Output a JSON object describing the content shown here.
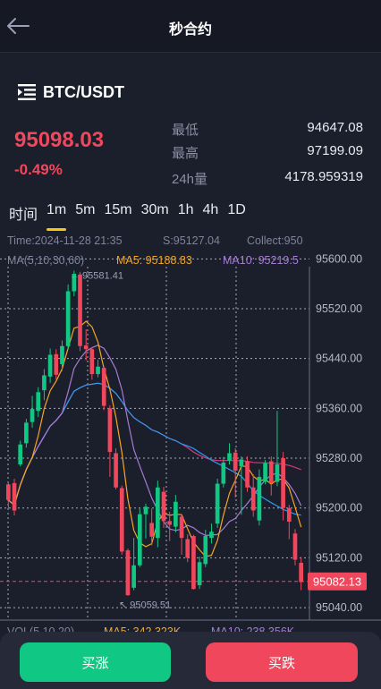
{
  "header": {
    "title": "秒合约"
  },
  "market": {
    "pair": "BTC/USDT",
    "price": "95098.03",
    "change": "-0.49%",
    "stats": [
      {
        "label": "最低",
        "value": "94647.08"
      },
      {
        "label": "最高",
        "value": "97199.09"
      },
      {
        "label": "24h量",
        "value": "4178.959319"
      }
    ]
  },
  "timeframes": {
    "label": "时间",
    "items": [
      "1m",
      "5m",
      "15m",
      "30m",
      "1h",
      "4h",
      "1D"
    ],
    "active": "1m"
  },
  "chart_info": {
    "time": "Time:2024-11-28 21:35",
    "start": "S:95127.04",
    "collect": "Collect:950",
    "ma_label": "MA(5,10,30,60)",
    "ma5": "MA5: 95188.83",
    "ma10": "MA10: 95219.5",
    "vol_label": "VOL(5,10,20)",
    "vol_ma5": "MA5: 342.323K",
    "vol_ma10": "MA10: 238.356K"
  },
  "chart_data": {
    "type": "candlestick",
    "y_ticks": [
      "95600.00",
      "95520.00",
      "95440.00",
      "95360.00",
      "95280.00",
      "95200.00",
      "95120.00",
      "95040.00"
    ],
    "ylim": [
      95020,
      95645
    ],
    "current_price": "95082.13",
    "max_label": "← 95581.41",
    "min_label": "↖ 95059.51",
    "candles": [
      [
        95238,
        95213,
        95241,
        95199
      ],
      [
        95240,
        95196,
        95247,
        95188
      ],
      [
        95270,
        95302,
        95308,
        95267
      ],
      [
        95304,
        95337,
        95343,
        95297
      ],
      [
        95338,
        95359,
        95380,
        95329
      ],
      [
        95356,
        95386,
        95394,
        95346
      ],
      [
        95389,
        95413,
        95423,
        95373
      ],
      [
        95411,
        95446,
        95456,
        95401
      ],
      [
        95447,
        95414,
        95455,
        95406
      ],
      [
        95431,
        95460,
        95469,
        95420
      ],
      [
        95460,
        95548,
        95559,
        95455
      ],
      [
        95548,
        95576,
        95581,
        95540
      ],
      [
        95575,
        95460,
        95579,
        95452
      ],
      [
        95461,
        95455,
        95487,
        95437
      ],
      [
        95455,
        95415,
        95458,
        95406
      ],
      [
        95415,
        95427,
        95438,
        95410
      ],
      [
        95425,
        95364,
        95428,
        95357
      ],
      [
        95360,
        95290,
        95365,
        95250
      ],
      [
        95288,
        95233,
        95296,
        95230
      ],
      [
        95232,
        95130,
        95236,
        95125
      ],
      [
        95132,
        95060,
        95135,
        95059
      ],
      [
        95072,
        95108,
        95152,
        95068
      ],
      [
        95108,
        95190,
        95199,
        95105
      ],
      [
        95190,
        95202,
        95207,
        95151
      ],
      [
        95176,
        95154,
        95199,
        95140
      ],
      [
        95152,
        95233,
        95244,
        95137
      ],
      [
        95226,
        95179,
        95234,
        95168
      ],
      [
        95179,
        95173,
        95194,
        95147
      ],
      [
        95170,
        95210,
        95221,
        95161
      ],
      [
        95186,
        95152,
        95190,
        95125
      ],
      [
        95150,
        95120,
        95158,
        95113
      ],
      [
        95155,
        95070,
        95157,
        95069
      ],
      [
        95076,
        95113,
        95122,
        95070
      ],
      [
        95110,
        95155,
        95165,
        95105
      ],
      [
        95152,
        95162,
        95175,
        95143
      ],
      [
        95175,
        95239,
        95247,
        95168
      ],
      [
        95239,
        95273,
        95282,
        95233
      ],
      [
        95276,
        95288,
        95304,
        95270
      ],
      [
        95289,
        95260,
        95296,
        95217
      ],
      [
        95267,
        95278,
        95283,
        95189
      ],
      [
        95275,
        95233,
        95283,
        95226
      ],
      [
        95233,
        95196,
        95254,
        95186
      ],
      [
        95180,
        95250,
        95262,
        95172
      ],
      [
        95242,
        95272,
        95277,
        95238
      ],
      [
        95275,
        95240,
        95283,
        95220
      ],
      [
        95242,
        95270,
        95356,
        95235
      ],
      [
        95280,
        95200,
        95290,
        95180
      ],
      [
        95200,
        95178,
        95205,
        95150
      ],
      [
        95159,
        95117,
        95166,
        95108
      ],
      [
        95112,
        95081,
        95121,
        95068
      ]
    ],
    "colors": {
      "up": "#10c883",
      "down": "#f0475c",
      "ma5": "#f5a623",
      "ma10": "#a67cd6",
      "ma30": "#2b9bf0",
      "ma60": "#d23a80"
    }
  },
  "actions": {
    "buy": "买涨",
    "sell": "买跌"
  }
}
